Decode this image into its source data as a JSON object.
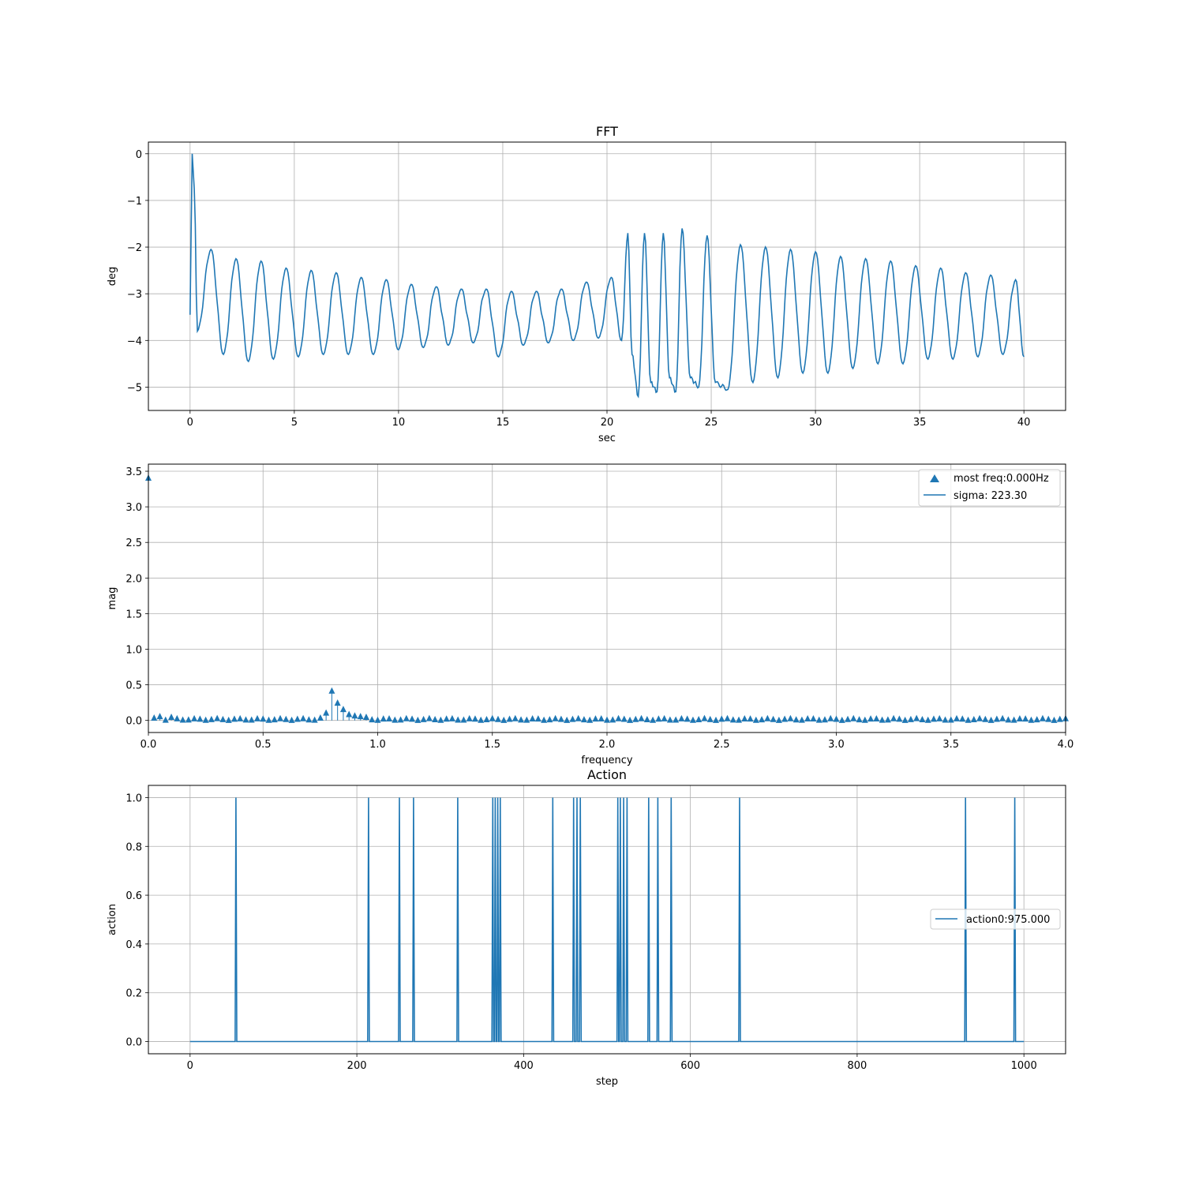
{
  "colors": {
    "series": "#1f77b4",
    "grid": "#b0b0b0"
  },
  "chart_data": [
    {
      "type": "line",
      "title": "FFT",
      "xlabel": "sec",
      "ylabel": "deg",
      "xlim": [
        -2,
        42
      ],
      "ylim": [
        -5.5,
        0.25
      ],
      "xticks": [
        0,
        5,
        10,
        15,
        20,
        25,
        30,
        35,
        40
      ],
      "xtick_labels": [
        "0",
        "5",
        "10",
        "15",
        "20",
        "25",
        "30",
        "35",
        "40"
      ],
      "yticks": [
        0,
        -1,
        -2,
        -3,
        -4,
        -5
      ],
      "ytick_labels": [
        "0",
        "−1",
        "−2",
        "−3",
        "−4",
        "−5"
      ],
      "grid": true,
      "signal_description": "oscillation with a spike to 0 at t≈0.1, period ≈1.2 s, baseline ≈−3.4; amplitude decays to ≈0.6 by t=20, jumps to ≈1.6 at t≈21 and decays to ≈0.9 by t=40",
      "series": [
        {
          "name": "",
          "x": [
            0,
            0.1,
            0.2,
            0.35,
            1.0,
            1.6,
            2.2,
            2.8,
            3.4,
            4.0,
            4.6,
            5.2,
            5.8,
            6.4,
            7.0,
            7.6,
            8.2,
            8.8,
            9.4,
            10.0,
            10.6,
            11.2,
            11.8,
            12.4,
            13.0,
            13.6,
            14.2,
            14.8,
            15.4,
            16.0,
            16.6,
            17.2,
            17.8,
            18.4,
            19.0,
            19.6,
            20.2,
            20.7,
            21.0,
            21.2,
            21.5,
            21.8,
            22.1,
            22.4,
            22.7,
            23.0,
            23.3,
            23.6,
            24.0,
            24.4,
            24.8,
            25.2,
            25.8,
            26.4,
            27.0,
            27.6,
            28.2,
            28.8,
            29.4,
            30.0,
            30.6,
            31.2,
            31.8,
            32.4,
            33.0,
            33.6,
            34.2,
            34.8,
            35.4,
            36.0,
            36.6,
            37.2,
            37.8,
            38.4,
            39.0,
            39.6,
            40.0
          ],
          "y": [
            -3.45,
            0.0,
            -0.75,
            -3.8,
            -2.05,
            -4.3,
            -2.25,
            -4.45,
            -2.3,
            -4.4,
            -2.45,
            -4.35,
            -2.5,
            -4.3,
            -2.55,
            -4.3,
            -2.65,
            -4.3,
            -2.7,
            -4.2,
            -2.8,
            -4.15,
            -2.85,
            -4.1,
            -2.9,
            -4.05,
            -2.9,
            -4.35,
            -2.95,
            -4.1,
            -2.95,
            -4.05,
            -2.9,
            -4.0,
            -2.75,
            -3.95,
            -2.65,
            -4.0,
            -1.7,
            -4.3,
            -5.2,
            -1.7,
            -4.9,
            -5.1,
            -1.7,
            -4.8,
            -5.1,
            -1.6,
            -4.8,
            -5.0,
            -1.75,
            -4.9,
            -5.05,
            -1.95,
            -4.9,
            -2.0,
            -4.8,
            -2.05,
            -4.7,
            -2.1,
            -4.7,
            -2.2,
            -4.6,
            -2.25,
            -4.5,
            -2.3,
            -4.5,
            -2.4,
            -4.4,
            -2.45,
            -4.4,
            -2.55,
            -4.35,
            -2.6,
            -4.3,
            -2.7,
            -4.35
          ]
        }
      ]
    },
    {
      "type": "stem",
      "title": "",
      "xlabel": "frequency",
      "ylabel": "mag",
      "xlim": [
        0,
        4
      ],
      "ylim": [
        -0.17,
        3.6
      ],
      "xticks": [
        0,
        0.5,
        1.0,
        1.5,
        2.0,
        2.5,
        3.0,
        3.5,
        4.0
      ],
      "xtick_labels": [
        "0.0",
        "0.5",
        "1.0",
        "1.5",
        "2.0",
        "2.5",
        "3.0",
        "3.5",
        "4.0"
      ],
      "yticks": [
        0,
        0.5,
        1.0,
        1.5,
        2.0,
        2.5,
        3.0,
        3.5
      ],
      "ytick_labels": [
        "0.0",
        "0.5",
        "1.0",
        "1.5",
        "2.0",
        "2.5",
        "3.0",
        "3.5"
      ],
      "grid": true,
      "legend_position": "upper right",
      "legend": [
        "most freq:0.000Hz",
        "sigma: 223.30"
      ],
      "marker": "triangle",
      "spacing": 0.025,
      "count": 161,
      "peaks": [
        {
          "x": 0.0,
          "y": 3.4
        },
        {
          "x": 0.025,
          "y": 0.03
        },
        {
          "x": 0.05,
          "y": 0.05
        },
        {
          "x": 0.075,
          "y": 0.0
        },
        {
          "x": 0.1,
          "y": 0.04
        },
        {
          "x": 0.75,
          "y": 0.03
        },
        {
          "x": 0.775,
          "y": 0.1
        },
        {
          "x": 0.8,
          "y": 0.41
        },
        {
          "x": 0.825,
          "y": 0.24
        },
        {
          "x": 0.85,
          "y": 0.15
        },
        {
          "x": 0.875,
          "y": 0.08
        },
        {
          "x": 0.9,
          "y": 0.06
        },
        {
          "x": 0.925,
          "y": 0.05
        },
        {
          "x": 0.95,
          "y": 0.04
        }
      ],
      "baseline_value": 0.01
    },
    {
      "type": "line",
      "title": "Action",
      "xlabel": "step",
      "ylabel": "action",
      "xlim": [
        -50,
        1050
      ],
      "ylim": [
        -0.05,
        1.05
      ],
      "xticks": [
        0,
        200,
        400,
        600,
        800,
        1000
      ],
      "xtick_labels": [
        "0",
        "200",
        "400",
        "600",
        "800",
        "1000"
      ],
      "yticks": [
        0,
        0.2,
        0.4,
        0.6,
        0.8,
        1.0
      ],
      "ytick_labels": [
        "0.0",
        "0.2",
        "0.4",
        "0.6",
        "0.8",
        "1.0"
      ],
      "grid": true,
      "legend_position": "center right",
      "legend": [
        "action0:975.000"
      ],
      "step_range": [
        0,
        1000
      ],
      "spike_steps": [
        55,
        214,
        251,
        268,
        321,
        363,
        366,
        369,
        372,
        435,
        460,
        464,
        468,
        513,
        516,
        520,
        524,
        550,
        561,
        577,
        659,
        930,
        989
      ]
    }
  ]
}
